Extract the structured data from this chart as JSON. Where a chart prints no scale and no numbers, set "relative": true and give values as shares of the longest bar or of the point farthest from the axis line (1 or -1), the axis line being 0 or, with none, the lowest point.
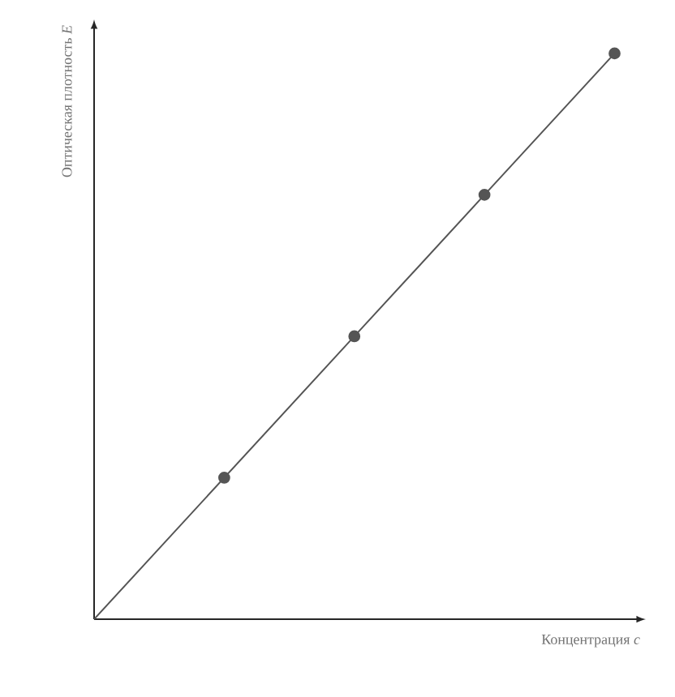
{
  "chart_data": {
    "type": "line",
    "xlabel": "Концентрация *c*",
    "ylabel": "Оптическая плотность *E*",
    "categories": [
      null,
      null,
      null,
      null,
      null
    ],
    "relative": true,
    "marker": "circle",
    "series": [
      {
        "color": "#555555",
        "values": [
          0,
          0.25,
          0.5,
          0.75,
          1
        ]
      }
    ]
  }
}
